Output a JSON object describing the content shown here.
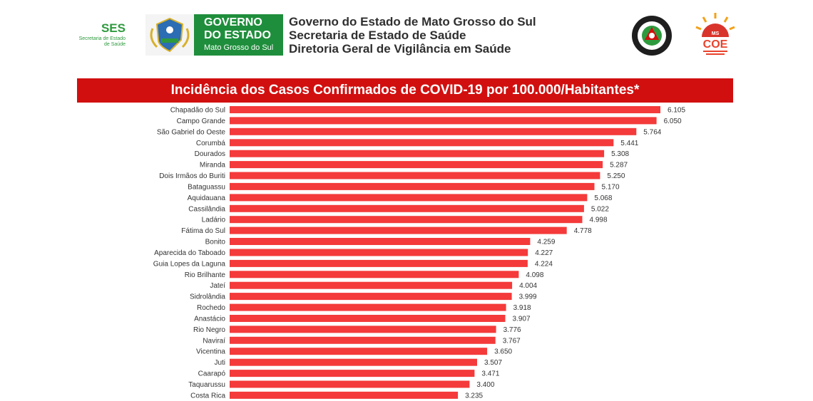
{
  "header": {
    "ses": {
      "abbr": "SES",
      "subtitle_line1": "Secretaria de Estado",
      "subtitle_line2": "de Saúde"
    },
    "governo": {
      "line1": "GOVERNO",
      "line2": "DO ESTADO",
      "line3": "Mato Grosso do Sul"
    },
    "lines": [
      "Governo do Estado de Mato Grosso do Sul",
      "Secretaria de Estado de Saúde",
      "Diretoria Geral de Vigilância em Saúde"
    ],
    "coe_label": "COE",
    "coe_ms": "MS"
  },
  "colors": {
    "bar": "#f43a3a",
    "title_bg": "#d10f0f",
    "brand_green": "#1f8e3c"
  },
  "chart_data": {
    "type": "bar",
    "orientation": "horizontal",
    "title": "Incidência dos Casos Confirmados de COVID-19 por 100.000/Habitantes*",
    "categories": [
      "Chapadão do Sul",
      "Campo Grande",
      "São Gabriel do Oeste",
      "Corumbá",
      "Dourados",
      "Miranda",
      "Dois Irmãos do Buriti",
      "Bataguassu",
      "Aquidauana",
      "Cassilândia",
      "Ladário",
      "Fátima do Sul",
      "Bonito",
      "Aparecida do Taboado",
      "Guia Lopes da Laguna",
      "Rio Brilhante",
      "Jateí",
      "Sidrolândia",
      "Rochedo",
      "Anastácio",
      "Rio Negro",
      "Naviraí",
      "Vicentina",
      "Juti",
      "Caarapó",
      "Taquarussu",
      "Costa Rica"
    ],
    "values": [
      6105,
      6050,
      5764,
      5441,
      5308,
      5287,
      5250,
      5170,
      5068,
      5022,
      4998,
      4778,
      4259,
      4227,
      4224,
      4098,
      4004,
      3999,
      3918,
      3907,
      3776,
      3767,
      3650,
      3507,
      3471,
      3400,
      3235
    ],
    "value_labels": [
      "6.105",
      "6.050",
      "5.764",
      "5.441",
      "5.308",
      "5.287",
      "5.250",
      "5.170",
      "5.068",
      "5.022",
      "4.998",
      "4.778",
      "4.259",
      "4.227",
      "4.224",
      "4.098",
      "4.004",
      "3.999",
      "3.918",
      "3.907",
      "3.776",
      "3.767",
      "3.650",
      "3.507",
      "3.471",
      "3.400",
      "3.235"
    ],
    "xlim": [
      0,
      6105
    ],
    "grid": false,
    "legend": "none"
  }
}
